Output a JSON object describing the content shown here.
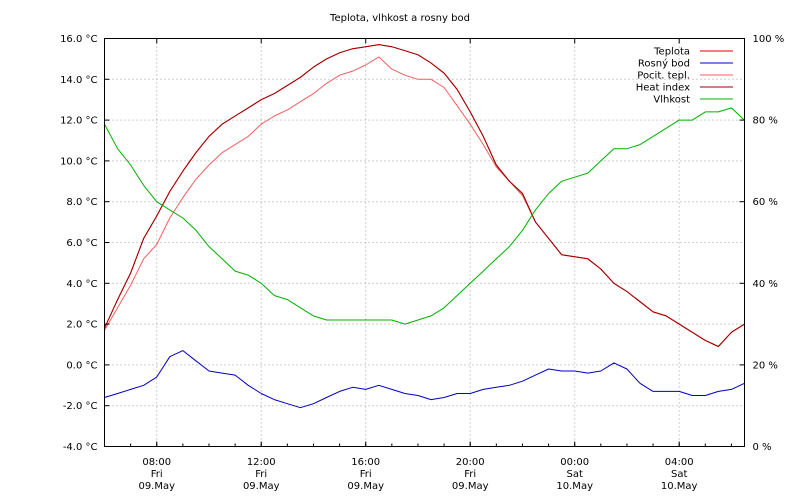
{
  "chart_data": {
    "type": "line",
    "title": "Teplota, vlhkost a rosny bod",
    "xlabel": "",
    "ylabel": "",
    "y_left": {
      "ylim": [
        -4.0,
        16.0
      ],
      "ticks": [
        -4.0,
        -2.0,
        0.0,
        2.0,
        4.0,
        6.0,
        8.0,
        10.0,
        12.0,
        14.0,
        16.0
      ],
      "tick_labels": [
        "-4.0 °C",
        "-2.0 °C",
        "0.0 °C",
        "2.0 °C",
        "4.0 °C",
        "6.0 °C",
        "8.0 °C",
        "10.0 °C",
        "12.0 °C",
        "14.0 °C",
        "16.0 °C"
      ]
    },
    "y_right": {
      "ylim": [
        0,
        100
      ],
      "ticks": [
        0,
        20,
        40,
        60,
        80,
        100
      ],
      "tick_labels": [
        "0 %",
        "20 %",
        "40 %",
        "60 %",
        "80 %",
        "100 %"
      ]
    },
    "x_axis": {
      "xlim": [
        6.0,
        30.5
      ],
      "ticks": [
        {
          "hour": 8,
          "l1": "08:00",
          "l2": "Fri",
          "l3": "09.May"
        },
        {
          "hour": 12,
          "l1": "12:00",
          "l2": "Fri",
          "l3": "09.May"
        },
        {
          "hour": 16,
          "l1": "16:00",
          "l2": "Fri",
          "l3": "09.May"
        },
        {
          "hour": 20,
          "l1": "20:00",
          "l2": "Fri",
          "l3": "09.May"
        },
        {
          "hour": 24,
          "l1": "00:00",
          "l2": "Sat",
          "l3": "10.May"
        },
        {
          "hour": 28,
          "l1": "04:00",
          "l2": "Sat",
          "l3": "10.May"
        }
      ]
    },
    "grid": true,
    "legend_position": "top-right",
    "series": [
      {
        "name": "Teplota",
        "color": "#e00000",
        "axis": "left",
        "points": [
          [
            6.0,
            1.8
          ],
          [
            6.5,
            3.2
          ],
          [
            7.0,
            4.5
          ],
          [
            7.5,
            6.2
          ],
          [
            8.0,
            7.3
          ],
          [
            8.5,
            8.5
          ],
          [
            9.0,
            9.5
          ],
          [
            9.5,
            10.4
          ],
          [
            10.0,
            11.2
          ],
          [
            10.5,
            11.8
          ],
          [
            11.0,
            12.2
          ],
          [
            11.5,
            12.6
          ],
          [
            12.0,
            13.0
          ],
          [
            12.5,
            13.3
          ],
          [
            13.0,
            13.7
          ],
          [
            13.5,
            14.1
          ],
          [
            14.0,
            14.6
          ],
          [
            14.5,
            15.0
          ],
          [
            15.0,
            15.3
          ],
          [
            15.5,
            15.5
          ],
          [
            16.0,
            15.6
          ],
          [
            16.5,
            15.7
          ],
          [
            17.0,
            15.6
          ],
          [
            17.5,
            15.4
          ],
          [
            18.0,
            15.2
          ],
          [
            18.5,
            14.8
          ],
          [
            19.0,
            14.3
          ],
          [
            19.5,
            13.5
          ],
          [
            20.0,
            12.4
          ],
          [
            20.5,
            11.2
          ],
          [
            21.0,
            9.8
          ],
          [
            21.5,
            9.0
          ],
          [
            22.0,
            8.4
          ],
          [
            22.5,
            7.0
          ],
          [
            23.0,
            6.2
          ],
          [
            23.5,
            5.4
          ],
          [
            24.0,
            5.3
          ],
          [
            24.5,
            5.2
          ],
          [
            25.0,
            4.7
          ],
          [
            25.5,
            4.0
          ],
          [
            26.0,
            3.6
          ],
          [
            26.5,
            3.1
          ],
          [
            27.0,
            2.6
          ],
          [
            27.5,
            2.4
          ],
          [
            28.0,
            2.0
          ],
          [
            28.5,
            1.6
          ],
          [
            29.0,
            1.2
          ],
          [
            29.5,
            0.9
          ],
          [
            30.0,
            1.6
          ],
          [
            30.5,
            2.0
          ]
        ]
      },
      {
        "name": "Rosný bod",
        "color": "#0000c0",
        "axis": "left",
        "points": [
          [
            6.0,
            -1.6
          ],
          [
            6.5,
            -1.4
          ],
          [
            7.0,
            -1.2
          ],
          [
            7.5,
            -1.0
          ],
          [
            8.0,
            -0.6
          ],
          [
            8.5,
            0.4
          ],
          [
            9.0,
            0.7
          ],
          [
            9.5,
            0.2
          ],
          [
            10.0,
            -0.3
          ],
          [
            10.5,
            -0.4
          ],
          [
            11.0,
            -0.5
          ],
          [
            11.5,
            -1.0
          ],
          [
            12.0,
            -1.4
          ],
          [
            12.5,
            -1.7
          ],
          [
            13.0,
            -1.9
          ],
          [
            13.5,
            -2.1
          ],
          [
            14.0,
            -1.9
          ],
          [
            14.5,
            -1.6
          ],
          [
            15.0,
            -1.3
          ],
          [
            15.5,
            -1.1
          ],
          [
            16.0,
            -1.2
          ],
          [
            16.5,
            -1.0
          ],
          [
            17.0,
            -1.2
          ],
          [
            17.5,
            -1.4
          ],
          [
            18.0,
            -1.5
          ],
          [
            18.5,
            -1.7
          ],
          [
            19.0,
            -1.6
          ],
          [
            19.5,
            -1.4
          ],
          [
            20.0,
            -1.4
          ],
          [
            20.5,
            -1.2
          ],
          [
            21.0,
            -1.1
          ],
          [
            21.5,
            -1.0
          ],
          [
            22.0,
            -0.8
          ],
          [
            22.5,
            -0.5
          ],
          [
            23.0,
            -0.2
          ],
          [
            23.5,
            -0.3
          ],
          [
            24.0,
            -0.3
          ],
          [
            24.5,
            -0.4
          ],
          [
            25.0,
            -0.3
          ],
          [
            25.5,
            0.1
          ],
          [
            26.0,
            -0.2
          ],
          [
            26.5,
            -0.9
          ],
          [
            27.0,
            -1.3
          ],
          [
            27.5,
            -1.3
          ],
          [
            28.0,
            -1.3
          ],
          [
            28.5,
            -1.5
          ],
          [
            29.0,
            -1.5
          ],
          [
            29.5,
            -1.3
          ],
          [
            30.0,
            -1.2
          ],
          [
            30.5,
            -0.9
          ]
        ]
      },
      {
        "name": "Pocit. tepl.",
        "color": "#f06060",
        "axis": "left",
        "points": [
          [
            6.0,
            1.7
          ],
          [
            6.5,
            2.8
          ],
          [
            7.0,
            3.9
          ],
          [
            7.5,
            5.2
          ],
          [
            8.0,
            5.9
          ],
          [
            8.5,
            7.2
          ],
          [
            9.0,
            8.2
          ],
          [
            9.5,
            9.1
          ],
          [
            10.0,
            9.8
          ],
          [
            10.5,
            10.4
          ],
          [
            11.0,
            10.8
          ],
          [
            11.5,
            11.2
          ],
          [
            12.0,
            11.8
          ],
          [
            12.5,
            12.2
          ],
          [
            13.0,
            12.5
          ],
          [
            13.5,
            12.9
          ],
          [
            14.0,
            13.3
          ],
          [
            14.5,
            13.8
          ],
          [
            15.0,
            14.2
          ],
          [
            15.5,
            14.4
          ],
          [
            16.0,
            14.7
          ],
          [
            16.5,
            15.1
          ],
          [
            17.0,
            14.5
          ],
          [
            17.5,
            14.2
          ],
          [
            18.0,
            14.0
          ],
          [
            18.5,
            14.0
          ],
          [
            19.0,
            13.6
          ],
          [
            19.5,
            12.7
          ],
          [
            20.0,
            11.8
          ],
          [
            20.5,
            10.8
          ],
          [
            21.0,
            9.7
          ],
          [
            21.5,
            9.0
          ],
          [
            22.0,
            8.3
          ],
          [
            22.5,
            7.0
          ],
          [
            23.0,
            6.2
          ],
          [
            23.5,
            5.4
          ],
          [
            24.0,
            5.3
          ],
          [
            24.5,
            5.2
          ],
          [
            25.0,
            4.7
          ],
          [
            25.5,
            4.0
          ],
          [
            26.0,
            3.6
          ],
          [
            26.5,
            3.1
          ],
          [
            27.0,
            2.6
          ],
          [
            27.5,
            2.4
          ],
          [
            28.0,
            2.0
          ],
          [
            28.5,
            1.6
          ],
          [
            29.0,
            1.2
          ],
          [
            29.5,
            0.9
          ],
          [
            30.0,
            1.6
          ],
          [
            30.5,
            2.0
          ]
        ]
      },
      {
        "name": "Heat index",
        "color": "#a00000",
        "axis": "left",
        "points": [
          [
            6.0,
            1.8
          ],
          [
            6.5,
            3.2
          ],
          [
            7.0,
            4.5
          ],
          [
            7.5,
            6.2
          ],
          [
            8.0,
            7.3
          ],
          [
            8.5,
            8.5
          ],
          [
            9.0,
            9.5
          ],
          [
            9.5,
            10.4
          ],
          [
            10.0,
            11.2
          ],
          [
            10.5,
            11.8
          ],
          [
            11.0,
            12.2
          ],
          [
            11.5,
            12.6
          ],
          [
            12.0,
            13.0
          ],
          [
            12.5,
            13.3
          ],
          [
            13.0,
            13.7
          ],
          [
            13.5,
            14.1
          ],
          [
            14.0,
            14.6
          ],
          [
            14.5,
            15.0
          ],
          [
            15.0,
            15.3
          ],
          [
            15.5,
            15.5
          ],
          [
            16.0,
            15.6
          ],
          [
            16.5,
            15.7
          ],
          [
            17.0,
            15.6
          ],
          [
            17.5,
            15.4
          ],
          [
            18.0,
            15.2
          ],
          [
            18.5,
            14.8
          ],
          [
            19.0,
            14.3
          ],
          [
            19.5,
            13.5
          ],
          [
            20.0,
            12.4
          ],
          [
            20.5,
            11.2
          ],
          [
            21.0,
            9.8
          ],
          [
            21.5,
            9.0
          ],
          [
            22.0,
            8.4
          ],
          [
            22.5,
            7.0
          ],
          [
            23.0,
            6.2
          ],
          [
            23.5,
            5.4
          ],
          [
            24.0,
            5.3
          ],
          [
            24.5,
            5.2
          ],
          [
            25.0,
            4.7
          ],
          [
            25.5,
            4.0
          ],
          [
            26.0,
            3.6
          ],
          [
            26.5,
            3.1
          ],
          [
            27.0,
            2.6
          ],
          [
            27.5,
            2.4
          ],
          [
            28.0,
            2.0
          ],
          [
            28.5,
            1.6
          ],
          [
            29.0,
            1.2
          ],
          [
            29.5,
            0.9
          ],
          [
            30.0,
            1.6
          ],
          [
            30.5,
            2.0
          ]
        ]
      },
      {
        "name": "Vlhkost",
        "color": "#00b000",
        "axis": "right",
        "points": [
          [
            6.0,
            79
          ],
          [
            6.5,
            73
          ],
          [
            7.0,
            69
          ],
          [
            7.5,
            64
          ],
          [
            8.0,
            60
          ],
          [
            8.5,
            58
          ],
          [
            9.0,
            56
          ],
          [
            9.5,
            53
          ],
          [
            10.0,
            49
          ],
          [
            10.5,
            46
          ],
          [
            11.0,
            43
          ],
          [
            11.5,
            42
          ],
          [
            12.0,
            40
          ],
          [
            12.5,
            37
          ],
          [
            13.0,
            36
          ],
          [
            13.5,
            34
          ],
          [
            14.0,
            32
          ],
          [
            14.5,
            31
          ],
          [
            15.0,
            31
          ],
          [
            15.5,
            31
          ],
          [
            16.0,
            31
          ],
          [
            16.5,
            31
          ],
          [
            17.0,
            31
          ],
          [
            17.5,
            30
          ],
          [
            18.0,
            31
          ],
          [
            18.5,
            32
          ],
          [
            19.0,
            34
          ],
          [
            19.5,
            37
          ],
          [
            20.0,
            40
          ],
          [
            20.5,
            43
          ],
          [
            21.0,
            46
          ],
          [
            21.5,
            49
          ],
          [
            22.0,
            53
          ],
          [
            22.5,
            58
          ],
          [
            23.0,
            62
          ],
          [
            23.5,
            65
          ],
          [
            24.0,
            66
          ],
          [
            24.5,
            67
          ],
          [
            25.0,
            70
          ],
          [
            25.5,
            73
          ],
          [
            26.0,
            73
          ],
          [
            26.5,
            74
          ],
          [
            27.0,
            76
          ],
          [
            27.5,
            78
          ],
          [
            28.0,
            80
          ],
          [
            28.5,
            80
          ],
          [
            29.0,
            82
          ],
          [
            29.5,
            82
          ],
          [
            30.0,
            83
          ],
          [
            30.5,
            80
          ]
        ]
      }
    ]
  }
}
